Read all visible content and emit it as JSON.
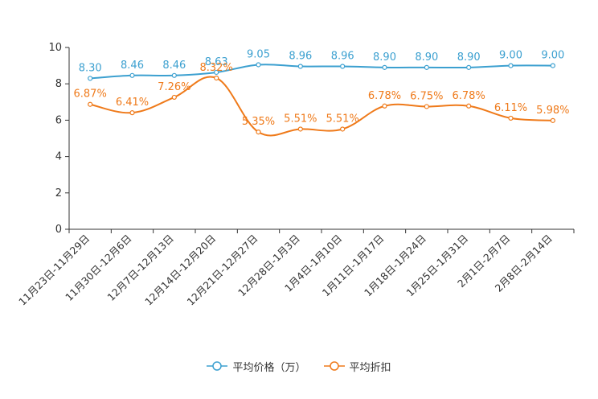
{
  "chart_data": {
    "type": "line",
    "title": "",
    "xlabel": "",
    "ylabel": "",
    "ylim": [
      0,
      10
    ],
    "yticks": [
      0,
      2,
      4,
      6,
      8,
      10
    ],
    "categories": [
      "11月23日-11月29日",
      "11月30日-12月6日",
      "12月7日-12月13日",
      "12月14日-12月20日",
      "12月21日-12月27日",
      "12月28日-1月3日",
      "1月4日-1月10日",
      "1月11日-1月17日",
      "1月18日-1月24日",
      "1月25日-1月31日",
      "2月1日-2月7日",
      "2月8日-2月14日"
    ],
    "series": [
      {
        "name": "平均价格（万）",
        "color": "#3ca0d0",
        "values": [
          8.3,
          8.46,
          8.46,
          8.63,
          9.05,
          8.96,
          8.96,
          8.9,
          8.9,
          8.9,
          9.0,
          9.0
        ],
        "labels": [
          "8.30",
          "8.46",
          "8.46",
          "8.63",
          "9.05",
          "8.96",
          "8.96",
          "8.90",
          "8.90",
          "8.90",
          "9.00",
          "9.00"
        ]
      },
      {
        "name": "平均折扣",
        "color": "#ef7a1a",
        "values": [
          6.87,
          6.41,
          7.26,
          8.32,
          5.35,
          5.51,
          5.51,
          6.78,
          6.75,
          6.78,
          6.11,
          5.98
        ],
        "labels": [
          "6.87%",
          "6.41%",
          "7.26%",
          "8.32%",
          "5.35%",
          "5.51%",
          "5.51%",
          "6.78%",
          "6.75%",
          "6.78%",
          "6.11%",
          "5.98%"
        ]
      }
    ],
    "legend_position": "bottom-center",
    "grid": false
  }
}
